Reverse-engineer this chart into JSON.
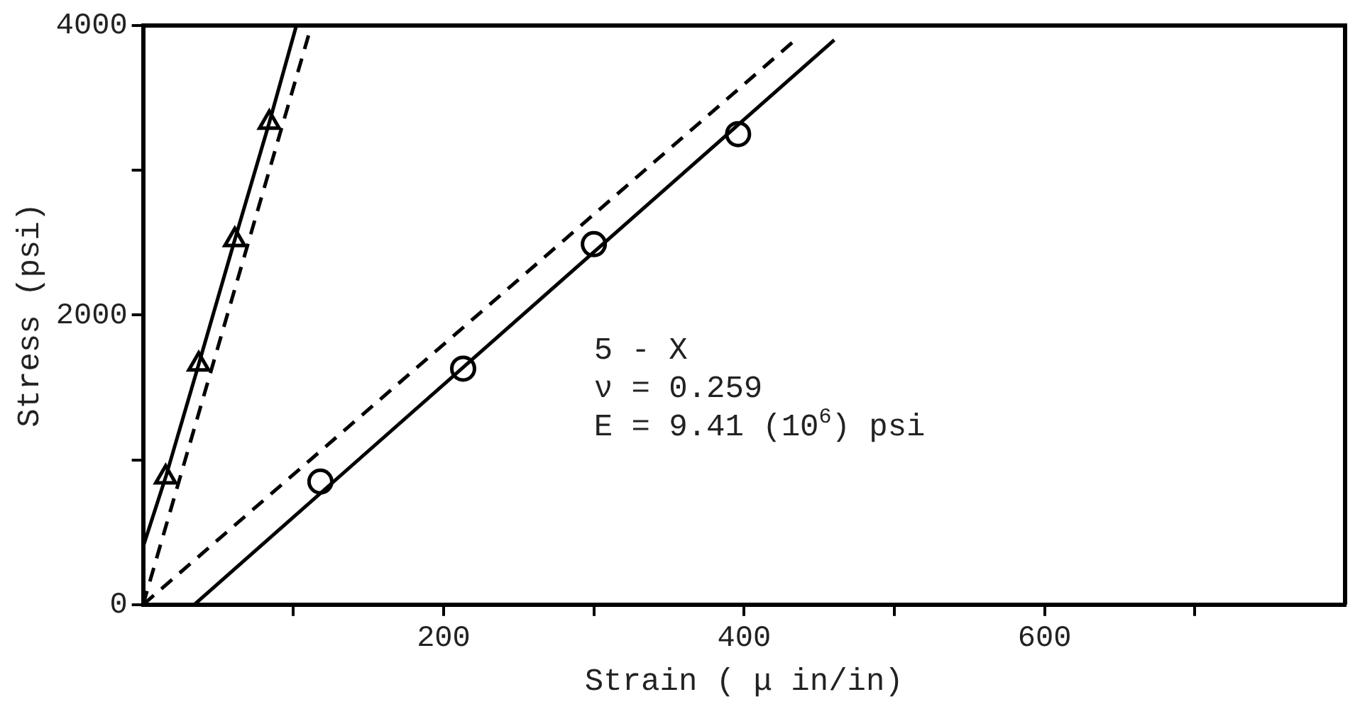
{
  "chart_data": {
    "type": "scatter",
    "xlabel": "Strain ( μ in/in)",
    "ylabel": "Stress (psi)",
    "xlim": [
      0,
      800
    ],
    "xticks": [
      {
        "value": 100,
        "label": null
      },
      200,
      {
        "value": 300,
        "label": null
      },
      400,
      {
        "value": 500,
        "label": null
      },
      600,
      {
        "value": 700,
        "label": null
      }
    ],
    "ylim": [
      0,
      4000
    ],
    "yticks": [
      0,
      {
        "value": 1000,
        "label": null
      },
      2000,
      {
        "value": 3000,
        "label": null
      },
      4000
    ],
    "grid": false,
    "legend": false,
    "series": [
      {
        "type": "line",
        "color": "#000000",
        "marker": "none",
        "line_style": "solid",
        "x": [
          0,
          15,
          37,
          61,
          84,
          102
        ],
        "values": [
          400,
          880,
          1660,
          2520,
          3330,
          4000
        ]
      },
      {
        "type": "scatter",
        "color": "#000000",
        "marker": "triangle",
        "x": [
          15,
          37,
          61,
          84
        ],
        "values": [
          880,
          1660,
          2520,
          3330
        ]
      },
      {
        "type": "line",
        "color": "#000000",
        "marker": "none",
        "line_style": "dashed",
        "x": [
          0,
          112
        ],
        "values": [
          0,
          4000
        ]
      },
      {
        "type": "line",
        "color": "#000000",
        "marker": "none",
        "line_style": "solid",
        "x": [
          34,
          460
        ],
        "values": [
          0,
          3900
        ]
      },
      {
        "type": "scatter",
        "color": "#000000",
        "marker": "circle",
        "x": [
          118,
          213,
          300,
          396
        ],
        "values": [
          850,
          1630,
          2490,
          3250
        ]
      },
      {
        "type": "line",
        "color": "#000000",
        "marker": "none",
        "line_style": "dashed",
        "x": [
          0,
          434
        ],
        "values": [
          0,
          3900
        ]
      }
    ],
    "annotations": [
      "5 - X",
      "ν = 0.259",
      "E = 9.41 (10$^{6}$) psi"
    ]
  }
}
